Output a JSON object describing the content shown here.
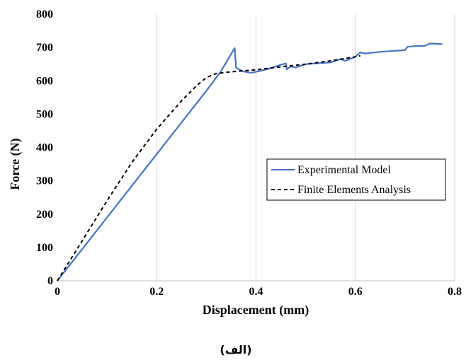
{
  "chart_data": {
    "type": "line",
    "title": "",
    "xlabel": "Displacement (mm)",
    "ylabel": "Force (N)",
    "xlim": [
      0,
      0.8
    ],
    "ylim": [
      0,
      800
    ],
    "x_ticks": [
      "0",
      "0.2",
      "0.4",
      "0.6",
      "0.8"
    ],
    "y_ticks": [
      "0",
      "100",
      "200",
      "300",
      "400",
      "500",
      "600",
      "700",
      "800"
    ],
    "grid": "vertical",
    "legend_position": "right-middle",
    "caption": "(الف)",
    "series": [
      {
        "name": "Experimental Model",
        "color": "#4472C4",
        "style": "solid",
        "x": [
          0,
          0.05,
          0.1,
          0.15,
          0.2,
          0.25,
          0.3,
          0.33,
          0.357,
          0.36,
          0.365,
          0.375,
          0.39,
          0.41,
          0.43,
          0.45,
          0.46,
          0.462,
          0.47,
          0.48,
          0.5,
          0.52,
          0.55,
          0.57,
          0.58,
          0.6,
          0.61,
          0.62,
          0.65,
          0.68,
          0.7,
          0.705,
          0.72,
          0.74,
          0.75,
          0.775
        ],
        "y": [
          0,
          95,
          190,
          285,
          380,
          475,
          570,
          630,
          698,
          640,
          635,
          628,
          624,
          630,
          638,
          648,
          652,
          635,
          643,
          640,
          650,
          652,
          655,
          665,
          660,
          672,
          685,
          682,
          687,
          690,
          692,
          702,
          704,
          705,
          712,
          710
        ]
      },
      {
        "name": "Finite Elements Analysis",
        "color": "#000000",
        "style": "dashed",
        "x": [
          0,
          0.05,
          0.1,
          0.15,
          0.2,
          0.25,
          0.28,
          0.3,
          0.32,
          0.35,
          0.4,
          0.45,
          0.5,
          0.55,
          0.6,
          0.61
        ],
        "y": [
          0,
          120,
          240,
          355,
          455,
          540,
          585,
          610,
          622,
          627,
          633,
          642,
          650,
          660,
          672,
          675
        ]
      }
    ]
  }
}
